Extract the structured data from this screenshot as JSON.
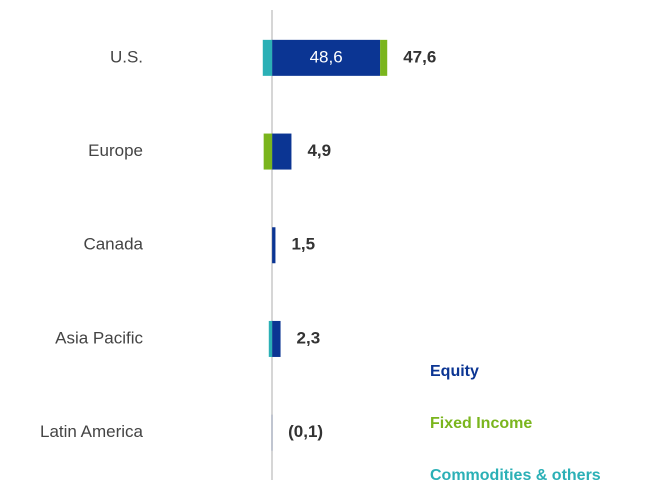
{
  "chart_data": {
    "type": "bar",
    "orientation": "horizontal",
    "stacked": true,
    "categories": [
      "U.S.",
      "Europe",
      "Canada",
      "Asia Pacific",
      "Latin America"
    ],
    "series": [
      {
        "name": "Equity",
        "color": "#0b3593",
        "values": [
          48.6,
          8.7,
          1.5,
          3.8,
          -0.1
        ],
        "value_labels": [
          "48,6",
          null,
          null,
          null,
          null
        ]
      },
      {
        "name": "Fixed Income",
        "color": "#7ab51d",
        "values": [
          3.2,
          -3.8,
          0,
          0,
          0
        ]
      },
      {
        "name": "Commodities & others",
        "color": "#2bb0b6",
        "values": [
          -4.2,
          0,
          0,
          -1.5,
          0
        ]
      }
    ],
    "totals": [
      47.6,
      4.9,
      1.5,
      2.3,
      -0.1
    ],
    "total_labels": [
      "47,6",
      "4,9",
      "1,5",
      "2,3",
      "(0,1)"
    ],
    "xlim": [
      -50,
      130
    ],
    "legend": "lower right"
  }
}
